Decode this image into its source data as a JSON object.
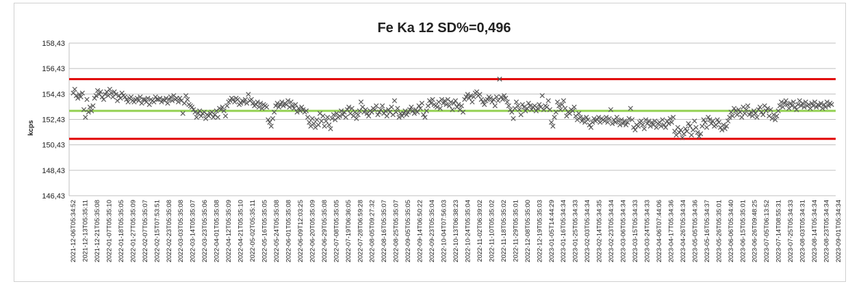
{
  "chart_data": {
    "type": "scatter",
    "title": "Fe Ka 12 SD%=0,496",
    "ylabel": "kcps",
    "xlabel": "",
    "ylim": [
      146.43,
      158.43
    ],
    "yticks": [
      "146,43",
      "148,43",
      "150,43",
      "152,43",
      "154,43",
      "156,43",
      "158,43"
    ],
    "grid": true,
    "legend": "none",
    "colors": {
      "marker": "#555555",
      "mean_line": "#92d050",
      "limit_line": "#e00000",
      "grid": "#bfbfbf"
    },
    "reference_lines": [
      {
        "name": "upper-limit",
        "value": 155.6
      },
      {
        "name": "mean",
        "value": 153.1
      },
      {
        "name": "lower-limit",
        "value": 150.9
      }
    ],
    "x_labels": [
      "2021-12-06T05:34:52",
      "2021-12-13T05:35:11",
      "2021-12-21T05:35:08",
      "2022-01-07T05:35:10",
      "2022-01-18T05:35:05",
      "2022-01-27T05:35:09",
      "2022-02-07T05:35:07",
      "2022-02-15T07:53:51",
      "2022-02-23T05:35:08",
      "2022-03-03T05:35:08",
      "2022-03-14T05:35:07",
      "2022-03-23T05:35:06",
      "2022-04-01T05:35:08",
      "2022-04-12T05:35:09",
      "2022-04-21T05:35:10",
      "2022-05-02T05:35:11",
      "2022-05-16T05:35:05",
      "2022-05-24T05:35:08",
      "2022-06-01T05:35:08",
      "2022-06-09T12:03:25",
      "2022-06-20T05:35:09",
      "2022-06-29T05:35:08",
      "2022-07-08T05:35:05",
      "2022-07-19T06:36:05",
      "2022-07-28T06:59:28",
      "2022-08-05T09:27:32",
      "2022-08-16T05:35:07",
      "2022-08-25T05:35:07",
      "2022-09-05T05:35:05",
      "2022-09-14T06:50:22",
      "2022-09-23T05:35:04",
      "2022-10-04T07:56:03",
      "2022-10-13T06:38:23",
      "2022-10-24T05:35:04",
      "2022-11-02T06:39:02",
      "2022-11-10T05:35:02",
      "2022-11-18T05:35:02",
      "2022-11-29T05:35:01",
      "2022-12-08T05:35:00",
      "2022-12-19T05:35:03",
      "2023-01-05T14:44:29",
      "2023-01-16T05:34:34",
      "2023-01-25T05:34:33",
      "2023-02-03T05:34:34",
      "2023-02-14T05:34:35",
      "2023-02-23T05:34:34",
      "2023-03-06T05:34:34",
      "2023-03-15T05:34:33",
      "2023-03-24T05:34:33",
      "2023-04-06T07:44:06",
      "2023-04-17T05:34:36",
      "2023-04-26T05:34:34",
      "2023-05-05T05:34:36",
      "2023-05-16T05:34:37",
      "2023-05-26T05:35:01",
      "2023-06-06T05:34:40",
      "2023-06-15T05:35:01",
      "2023-06-26T09:48:25",
      "2023-07-05T06:13:52",
      "2023-07-14T08:55:31",
      "2023-07-25T05:34:33",
      "2023-08-03T05:34:31",
      "2023-08-14T05:34:34",
      "2023-08-23T05:34:34",
      "2023-09-01T05:34:34"
    ],
    "series": [
      {
        "values": [
          154.5,
          154.8,
          154.3,
          154.1,
          154.4,
          154.2,
          154.5,
          153.2,
          152.6,
          154.0,
          153.0,
          153.4,
          153.1,
          153.5,
          154.1,
          154.3,
          154.7,
          154.4,
          154.6,
          154.2,
          154.0,
          154.4,
          154.6,
          154.3,
          154.8,
          154.5,
          154.2,
          154.6,
          154.4,
          153.9,
          154.3,
          154.1,
          154.5,
          154.3,
          154.2,
          154.0,
          153.8,
          154.1,
          154.2,
          153.9,
          153.8,
          154.0,
          154.1,
          153.9,
          154.2,
          153.7,
          154.0,
          154.0,
          153.8,
          154.1,
          153.6,
          154.0,
          153.9,
          153.8,
          154.2,
          154.0,
          154.0,
          154.1,
          153.8,
          154.0,
          153.9,
          154.1,
          153.7,
          154.0,
          154.2,
          153.9,
          154.3,
          154.0,
          154.1,
          153.8,
          154.1,
          153.9,
          152.9,
          153.7,
          154.3,
          154.0,
          153.6,
          153.5,
          153.4,
          153.2,
          153.0,
          152.6,
          152.9,
          153.1,
          152.7,
          152.9,
          153.0,
          152.5,
          152.8,
          152.7,
          152.9,
          153.0,
          152.6,
          152.8,
          153.1,
          152.6,
          153.3,
          153.2,
          153.4,
          153.1,
          152.7,
          153.5,
          153.8,
          153.9,
          154.1,
          154.0,
          153.8,
          154.1,
          154.0,
          153.6,
          153.7,
          153.9,
          153.8,
          154.0,
          153.7,
          154.4,
          153.9,
          154.0,
          153.7,
          153.5,
          153.6,
          153.8,
          153.4,
          153.7,
          153.3,
          153.6,
          153.5,
          153.4,
          152.4,
          152.2,
          151.9,
          152.5,
          153.0,
          153.5,
          153.7,
          153.4,
          153.6,
          153.8,
          153.5,
          153.7,
          153.6,
          153.9,
          153.4,
          153.8,
          153.5,
          153.3,
          153.6,
          153.0,
          153.3,
          153.1,
          153.4,
          153.2,
          153.0,
          153.1,
          152.6,
          152.2,
          151.9,
          152.5,
          152.1,
          151.8,
          152.4,
          152.0,
          152.9,
          152.3,
          152.7,
          151.9,
          152.3,
          152.6,
          152.0,
          151.7,
          152.5,
          152.8,
          152.4,
          152.9,
          152.6,
          152.7,
          153.1,
          152.8,
          153.0,
          152.6,
          153.2,
          153.4,
          152.9,
          153.3,
          152.7,
          153.0,
          152.5,
          152.8,
          153.1,
          153.8,
          153.4,
          153.0,
          153.2,
          152.9,
          152.7,
          153.1,
          153.0,
          153.3,
          153.2,
          153.5,
          152.8,
          153.0,
          153.2,
          153.5,
          152.9,
          153.1,
          152.7,
          153.2,
          153.0,
          153.4,
          152.8,
          153.9,
          153.0,
          153.3,
          152.6,
          152.9,
          152.7,
          152.9,
          153.1,
          152.8,
          153.0,
          153.2,
          153.4,
          153.1,
          152.9,
          153.2,
          153.0,
          153.5,
          153.3,
          153.7,
          152.8,
          152.6,
          153.1,
          153.5,
          153.9,
          153.7,
          154.0,
          153.6,
          153.5,
          153.4,
          153.8,
          153.3,
          154.0,
          153.7,
          153.9,
          153.6,
          154.0,
          153.5,
          153.8,
          153.2,
          153.7,
          153.9,
          153.4,
          153.6,
          153.2,
          153.5,
          153.0,
          154.0,
          154.2,
          154.4,
          154.1,
          154.3,
          153.8,
          154.2,
          154.5,
          154.6,
          154.3,
          154.4,
          154.0,
          153.8,
          153.6,
          153.9,
          154.0,
          154.2,
          154.1,
          153.8,
          154.0,
          153.5,
          154.2,
          153.9,
          155.6,
          154.2,
          154.0,
          154.3,
          154.1,
          153.8,
          153.5,
          153.2,
          153.0,
          152.5,
          153.3,
          153.8,
          153.5,
          153.2,
          152.8,
          153.6,
          153.4,
          153.1,
          153.3,
          153.7,
          153.5,
          153.2,
          153.4,
          153.5,
          153.1,
          153.3,
          153.6,
          153.4,
          154.3,
          153.2,
          153.5,
          153.4,
          153.9,
          153.2,
          152.2,
          151.9,
          152.6,
          153.0,
          153.8,
          153.5,
          153.2,
          153.6,
          153.9,
          153.3,
          152.7,
          153.0,
          152.9,
          153.2,
          153.1,
          153.4,
          152.7,
          152.4,
          152.9,
          152.6,
          152.3,
          152.5,
          152.2,
          152.6,
          152.4,
          152.0,
          151.8,
          152.2,
          152.5,
          152.3,
          152.4,
          152.6,
          152.2,
          152.5,
          152.4,
          152.3,
          152.6,
          152.2,
          152.5,
          153.2,
          152.1,
          152.4,
          152.2,
          152.6,
          152.3,
          152.0,
          152.4,
          152.1,
          152.3,
          152.0,
          152.2,
          152.5,
          153.3,
          152.4,
          151.8,
          151.6,
          152.0,
          151.9,
          152.2,
          152.3,
          152.0,
          151.7,
          152.4,
          152.1,
          152.3,
          151.9,
          152.2,
          152.0,
          152.3,
          151.8,
          152.1,
          152.2,
          151.9,
          152.4,
          152.0,
          151.8,
          152.3,
          152.1,
          152.5,
          152.2,
          152.6,
          151.5,
          151.2,
          151.8,
          151.4,
          151.6,
          151.0,
          151.3,
          151.7,
          151.5,
          152.1,
          151.9,
          151.2,
          151.6,
          152.3,
          151.8,
          151.4,
          151.1,
          151.3,
          151.9,
          152.4,
          152.2,
          151.8,
          152.6,
          152.4,
          152.1,
          152.3,
          151.9,
          152.0,
          152.4,
          152.2,
          151.8,
          151.6,
          152.0,
          151.7,
          151.9,
          152.3,
          152.6,
          153.0,
          152.7,
          153.3,
          153.1,
          152.8,
          153.2,
          153.0,
          152.6,
          153.4,
          152.9,
          153.2,
          153.5,
          152.8,
          153.0,
          152.7,
          153.1,
          152.9,
          152.6,
          153.2,
          153.4,
          153.0,
          152.8,
          153.5,
          153.1,
          153.3,
          152.7,
          153.2,
          152.5,
          152.8,
          152.4,
          152.7,
          153.1,
          153.5,
          153.8,
          153.4,
          153.7,
          153.9,
          153.6,
          153.3,
          153.7,
          153.5,
          153.8,
          153.4,
          153.2,
          153.6,
          153.9,
          153.5,
          153.7,
          153.4,
          153.8,
          153.5,
          153.6,
          153.3,
          153.7,
          153.5,
          153.8,
          153.4,
          153.6,
          153.5,
          153.7,
          153.3,
          153.6,
          153.4,
          153.8,
          153.5,
          153.7,
          153.6
        ]
      }
    ]
  }
}
